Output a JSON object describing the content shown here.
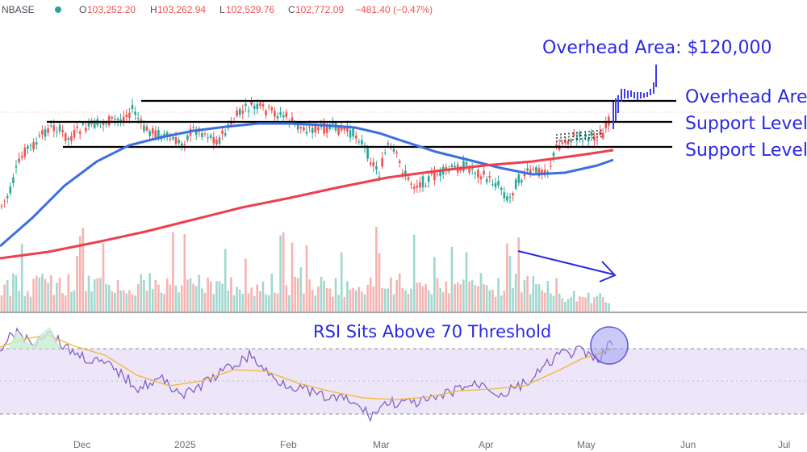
{
  "header": {
    "symbol": "NBASE",
    "open_label": "O",
    "open": "103,252.20",
    "high_label": "H",
    "high": "103,262.94",
    "low_label": "L",
    "low": "102,529.76",
    "close_label": "C",
    "close": "102,772.09",
    "change": "−481.40 (−0.47%)"
  },
  "annotations": {
    "overhead_top": "Overhead Area: $120,000",
    "overhead_line": "Overhead Area",
    "support_1": "Support Level",
    "support_2": "Support Level",
    "rsi": "RSI Sits Above 70 Threshold"
  },
  "colors": {
    "up": "#26a69a",
    "down": "#ef5350",
    "projection": "#3d3df0",
    "ma50": "#3b6fe0",
    "ma200": "#ee3f4c",
    "rsi_line": "#7e57c2",
    "rsi_ma": "#f2b632",
    "annotation": "#2929e6",
    "level_line": "#000000"
  },
  "chart_data": {
    "type": "candlestick",
    "x_ticks": [
      "Dec",
      "2025",
      "Feb",
      "Mar",
      "Apr",
      "May",
      "Jun",
      "Jul"
    ],
    "y_range_approx": [
      70000,
      125000
    ],
    "levels": [
      {
        "name": "Overhead Area",
        "value": 106500
      },
      {
        "name": "Support Level",
        "value": 102000
      },
      {
        "name": "Support Level",
        "value": 97000
      }
    ],
    "overhead_target": 120000,
    "series": [
      {
        "name": "50-day MA",
        "values_approx": [
          72000,
          80000,
          90000,
          96000,
          98500,
          100000,
          97000,
          89000,
          84000,
          83000,
          87000
        ]
      },
      {
        "name": "200-day MA",
        "values_approx": [
          68000,
          72000,
          76000,
          80000,
          84000,
          87000,
          90000,
          91500,
          92500,
          93500,
          96000
        ]
      }
    ],
    "rsi": {
      "upper": 70,
      "lower": 30,
      "latest_approx": 74
    },
    "volume_trend": "declining"
  }
}
